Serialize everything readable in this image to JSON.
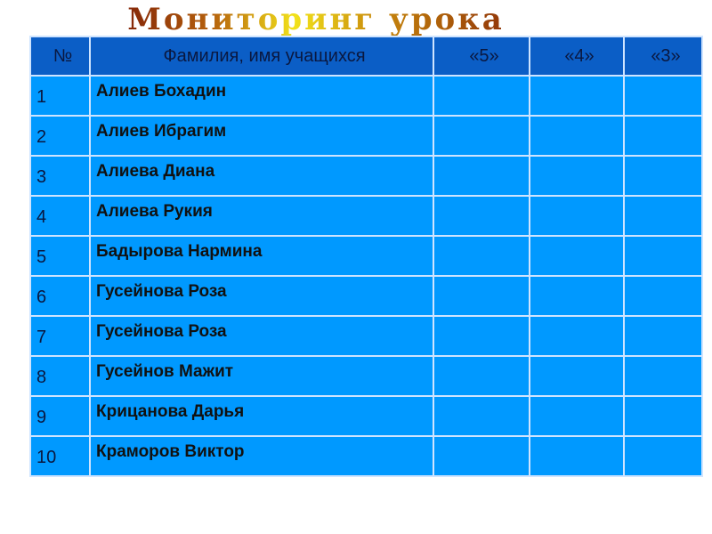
{
  "title": "Мониторинг урока",
  "headers": [
    "№",
    "Фамилия, имя учащихся",
    "«5»",
    "«4»",
    "«3»"
  ],
  "rows": [
    {
      "n": "1",
      "name": "Алиев  Бохадин"
    },
    {
      "n": "2",
      "name": "Алиев Ибрагим"
    },
    {
      "n": "3",
      "name": "Алиева Диана"
    },
    {
      "n": "4",
      "name": "Алиева Рукия"
    },
    {
      "n": "5",
      "name": "Бадырова Нармина"
    },
    {
      "n": "6",
      "name": "Гусейнова Роза"
    },
    {
      "n": "7",
      "name": "Гусейнова Роза"
    },
    {
      "n": "8",
      "name": "Гусейнов Мажит"
    },
    {
      "n": "9",
      "name": "Крицанова Дарья"
    },
    {
      "n": "10",
      "name": "Краморов Виктор"
    }
  ],
  "colors": {
    "header": "#0b5ec6",
    "cell": "#0099ff"
  }
}
